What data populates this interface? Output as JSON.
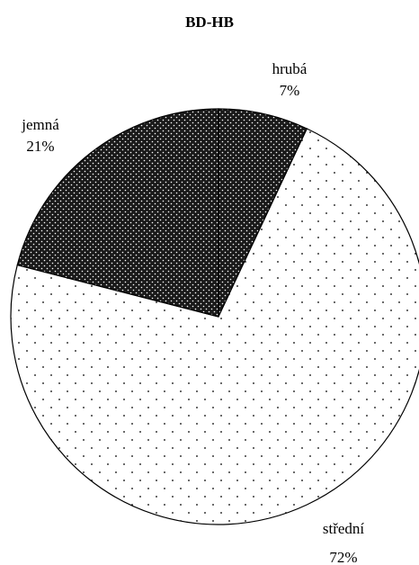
{
  "chart_data": {
    "type": "pie",
    "title": "BD-HB",
    "slices": [
      {
        "label": "hrubá",
        "value": 7,
        "value_label": "7%",
        "pattern": "dense-dark-dots"
      },
      {
        "label": "střední",
        "value": 72,
        "value_label": "72%",
        "pattern": "sparse-dots"
      },
      {
        "label": "jemná",
        "value": 21,
        "value_label": "21%",
        "pattern": "dense-dark-dots"
      }
    ],
    "legend": "none",
    "start_direction": "top",
    "direction": "clockwise"
  },
  "colors": {
    "background": "#ffffff",
    "outline": "#000000",
    "dark_fill": "#1a1a1a",
    "dot": "#000000"
  }
}
